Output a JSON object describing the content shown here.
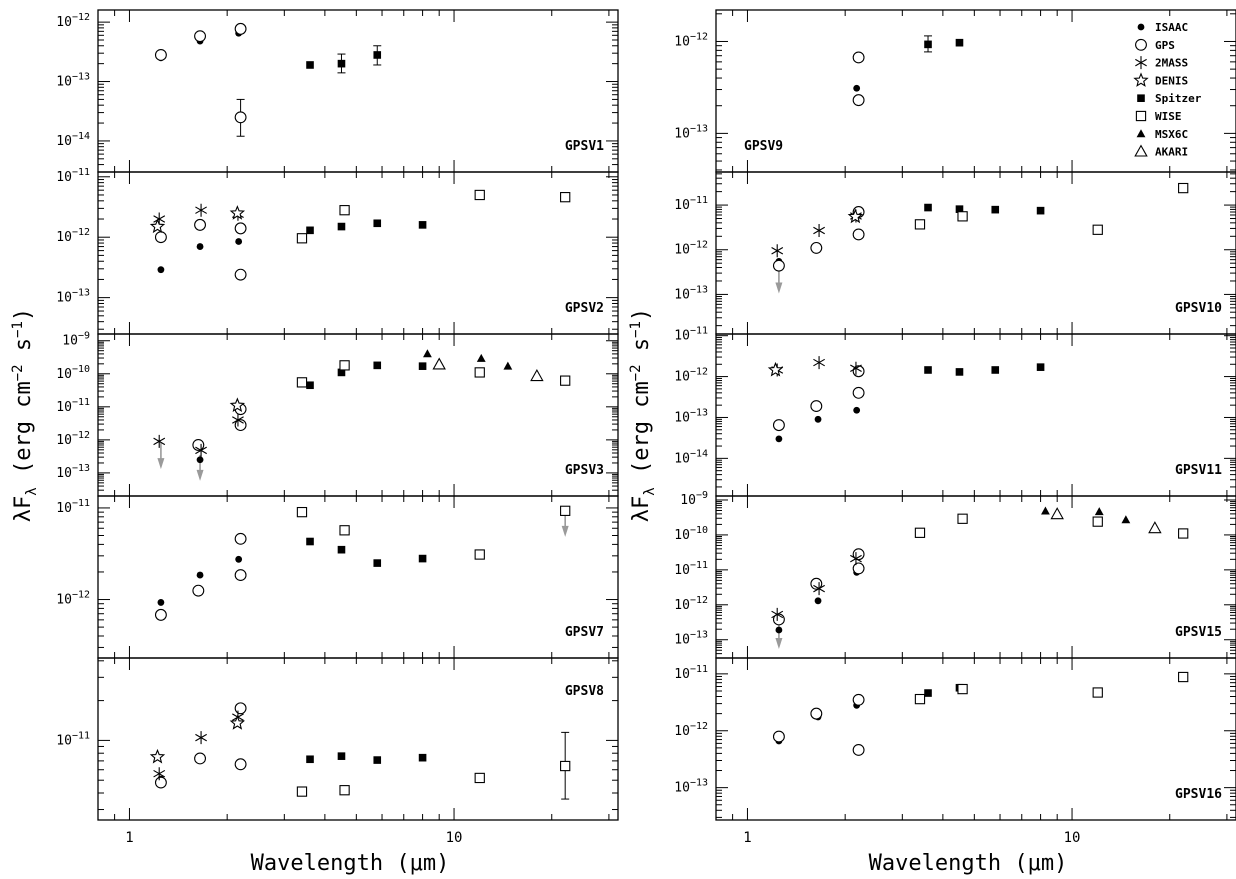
{
  "figure": {
    "xlabel": "Wavelength (μm)",
    "ylabel": "λF_λ (erg cm^-2 s^-1)",
    "x_tick_labels": [
      "1",
      "10"
    ]
  },
  "chart_data": [
    {
      "type": "scatter",
      "name": "GPSV1",
      "xscale": "log",
      "yscale": "log",
      "xlim": [
        0.8,
        32
      ],
      "ylim": [
        3e-15,
        1.6e-12
      ],
      "yticks": [
        {
          "v": 1e-14,
          "m": "10",
          "e": "−14"
        },
        {
          "v": 1e-13,
          "m": "10",
          "e": "−13"
        },
        {
          "v": 1e-12,
          "m": "10",
          "e": "−12"
        }
      ],
      "series": [
        {
          "name": "ISAAC",
          "x": [
            1.25,
            1.65,
            2.17
          ],
          "y": [
            2.5e-13,
            4.8e-13,
            6.5e-13
          ]
        },
        {
          "name": "GPS",
          "x": [
            1.25,
            1.65,
            2.2,
            2.2
          ],
          "y": [
            2.8e-13,
            5.8e-13,
            7.7e-13,
            2.5e-14
          ],
          "yerr": [
            null,
            null,
            null,
            [
              1.2e-14,
              5e-14
            ]
          ]
        },
        {
          "name": "Spitzer",
          "x": [
            3.6,
            4.5,
            5.8
          ],
          "y": [
            1.9e-13,
            2e-13,
            2.8e-13
          ],
          "yerr": [
            null,
            [
              1.4e-13,
              2.9e-13
            ],
            [
              1.9e-13,
              4e-13
            ]
          ]
        }
      ]
    },
    {
      "type": "scatter",
      "name": "GPSV2",
      "xscale": "log",
      "yscale": "log",
      "xlim": [
        0.8,
        32
      ],
      "ylim": [
        2.5e-14,
        1.2e-11
      ],
      "yticks": [
        {
          "v": 1e-13,
          "m": "10",
          "e": "−13"
        },
        {
          "v": 1e-12,
          "m": "10",
          "e": "−12"
        },
        {
          "v": 1e-11,
          "m": "10",
          "e": "−11"
        }
      ],
      "series": [
        {
          "name": "ISAAC",
          "x": [
            1.25,
            1.65,
            2.17
          ],
          "y": [
            2.9e-13,
            7e-13,
            8.5e-13
          ]
        },
        {
          "name": "GPS",
          "x": [
            1.25,
            1.65,
            2.2,
            2.2
          ],
          "y": [
            1e-12,
            1.6e-12,
            1.4e-12,
            2.4e-13
          ]
        },
        {
          "name": "2MASS",
          "x": [
            1.235,
            1.662,
            2.159
          ],
          "y": [
            2e-12,
            2.8e-12,
            2.4e-12
          ]
        },
        {
          "name": "DENIS",
          "x": [
            1.22,
            2.15
          ],
          "y": [
            1.5e-12,
            2.5e-12
          ]
        },
        {
          "name": "Spitzer",
          "x": [
            3.6,
            4.5,
            5.8,
            8.0
          ],
          "y": [
            1.3e-12,
            1.5e-12,
            1.7e-12,
            1.6e-12
          ]
        },
        {
          "name": "WISE",
          "x": [
            3.4,
            4.6,
            12,
            22
          ],
          "y": [
            9.6e-13,
            2.8e-12,
            5e-12,
            4.6e-12
          ]
        }
      ]
    },
    {
      "type": "scatter",
      "name": "GPSV3",
      "xscale": "log",
      "yscale": "log",
      "xlim": [
        0.8,
        32
      ],
      "ylim": [
        2e-14,
        1.6e-09
      ],
      "yticks": [
        {
          "v": 1e-13,
          "m": "10",
          "e": "−13"
        },
        {
          "v": 1e-12,
          "m": "10",
          "e": "−12"
        },
        {
          "v": 1e-11,
          "m": "10",
          "e": "−11"
        },
        {
          "v": 1e-10,
          "m": "10",
          "e": "−10"
        },
        {
          "v": 1e-09,
          "m": "10",
          "e": "−9"
        }
      ],
      "series": [
        {
          "name": "ISAAC",
          "x": [
            1.65,
            2.17
          ],
          "y": [
            2.5e-13,
            3e-12
          ]
        },
        {
          "name": "GPS",
          "x": [
            1.63,
            2.2,
            2.2
          ],
          "y": [
            7e-13,
            2.8e-12,
            8.5e-12
          ]
        },
        {
          "name": "2MASS",
          "x": [
            1.235,
            1.662,
            2.159
          ],
          "y": [
            9e-13,
            4.8e-13,
            4e-12
          ]
        },
        {
          "name": "DENIS",
          "x": [
            2.15
          ],
          "y": [
            1.1e-11
          ]
        },
        {
          "name": "Spitzer",
          "x": [
            3.6,
            4.5,
            5.8,
            8.0
          ],
          "y": [
            4.5e-11,
            1.1e-10,
            1.8e-10,
            1.7e-10
          ]
        },
        {
          "name": "WISE",
          "x": [
            3.4,
            4.6,
            12,
            22
          ],
          "y": [
            5.5e-11,
            1.8e-10,
            1.1e-10,
            6.2e-11
          ]
        },
        {
          "name": "MSX6C",
          "x": [
            8.28,
            12.13,
            14.65
          ],
          "y": [
            4e-10,
            2.9e-10,
            1.7e-10
          ]
        },
        {
          "name": "AKARI",
          "x": [
            9.0,
            18.0
          ],
          "y": [
            1.9e-10,
            8.5e-11
          ]
        }
      ],
      "upper_limits": [
        {
          "x": 1.25,
          "y": 8e-13
        },
        {
          "x": 1.65,
          "y": 3.5e-13
        }
      ]
    },
    {
      "type": "scatter",
      "name": "GPSV7",
      "xscale": "log",
      "yscale": "log",
      "xlim": [
        0.8,
        32
      ],
      "ylim": [
        2.3e-13,
        1.35e-11
      ],
      "yticks": [
        {
          "v": 1e-12,
          "m": "10",
          "e": "−12"
        },
        {
          "v": 1e-11,
          "m": "10",
          "e": "−11"
        }
      ],
      "series": [
        {
          "name": "ISAAC",
          "x": [
            1.25,
            1.65,
            2.17
          ],
          "y": [
            9.3e-13,
            1.85e-12,
            2.75e-12
          ]
        },
        {
          "name": "GPS",
          "x": [
            1.25,
            1.63,
            2.2,
            2.2
          ],
          "y": [
            6.8e-13,
            1.25e-12,
            4.6e-12,
            1.85e-12
          ]
        },
        {
          "name": "Spitzer",
          "x": [
            3.6,
            4.5,
            5.8,
            8.0
          ],
          "y": [
            4.3e-12,
            3.5e-12,
            2.5e-12,
            2.8e-12
          ]
        },
        {
          "name": "WISE",
          "x": [
            3.4,
            4.6,
            12,
            22
          ],
          "y": [
            9e-12,
            5.7e-12,
            3.1e-12,
            9.3e-12
          ]
        }
      ],
      "upper_limits": [
        {
          "x": 22,
          "y": 9.3e-12
        }
      ]
    },
    {
      "type": "scatter",
      "name": "GPSV8",
      "xscale": "log",
      "yscale": "log",
      "xlim": [
        0.8,
        32
      ],
      "ylim": [
        2.5e-12,
        4.2e-11
      ],
      "yticks": [
        {
          "v": 1e-11,
          "m": "10",
          "e": "−11"
        }
      ],
      "series": [
        {
          "name": "ISAAC",
          "x": [
            1.25,
            1.65,
            2.17
          ],
          "y": [
            5.1e-12,
            7.3e-12,
            6.6e-12
          ]
        },
        {
          "name": "GPS",
          "x": [
            1.25,
            1.65,
            2.2,
            2.2
          ],
          "y": [
            4.8e-12,
            7.3e-12,
            6.6e-12,
            1.75e-11
          ]
        },
        {
          "name": "2MASS",
          "x": [
            1.235,
            1.662,
            2.159
          ],
          "y": [
            5.6e-12,
            1.05e-11,
            1.5e-11
          ]
        },
        {
          "name": "DENIS",
          "x": [
            1.22,
            2.15
          ],
          "y": [
            7.5e-12,
            1.35e-11
          ]
        },
        {
          "name": "Spitzer",
          "x": [
            3.6,
            4.5,
            5.8,
            8.0
          ],
          "y": [
            7.2e-12,
            7.6e-12,
            7.1e-12,
            7.4e-12
          ]
        },
        {
          "name": "WISE",
          "x": [
            3.4,
            4.6,
            12,
            22
          ],
          "y": [
            4.1e-12,
            4.2e-12,
            5.2e-12,
            6.4e-12
          ],
          "yerr": [
            null,
            null,
            null,
            [
              3.6e-12,
              1.15e-11
            ]
          ]
        }
      ]
    },
    {
      "type": "scatter",
      "name": "GPSV9",
      "xscale": "log",
      "yscale": "log",
      "xlim": [
        0.8,
        32
      ],
      "ylim": [
        3.8e-14,
        2.2e-12
      ],
      "yticks": [
        {
          "v": 1e-13,
          "m": "10",
          "e": "−13"
        },
        {
          "v": 1e-12,
          "m": "10",
          "e": "−12"
        }
      ],
      "series": [
        {
          "name": "ISAAC",
          "x": [
            2.17
          ],
          "y": [
            3.1e-13
          ]
        },
        {
          "name": "GPS",
          "x": [
            2.2,
            2.2
          ],
          "y": [
            6.7e-13,
            2.3e-13
          ]
        },
        {
          "name": "Spitzer",
          "x": [
            3.6,
            4.5
          ],
          "y": [
            9.3e-13,
            9.7e-13
          ],
          "yerr": [
            [
              7.7e-13,
              1.15e-12
            ],
            null
          ]
        }
      ]
    },
    {
      "type": "scatter",
      "name": "GPSV10",
      "xscale": "log",
      "yscale": "log",
      "xlim": [
        0.8,
        32
      ],
      "ylim": [
        1.3e-14,
        5.5e-11
      ],
      "yticks": [
        {
          "v": 1e-13,
          "m": "10",
          "e": "−13"
        },
        {
          "v": 1e-12,
          "m": "10",
          "e": "−12"
        },
        {
          "v": 1e-11,
          "m": "10",
          "e": "−11"
        }
      ],
      "series": [
        {
          "name": "ISAAC",
          "x": [
            1.25,
            1.65,
            2.17
          ],
          "y": [
            5.5e-13,
            1.2e-12,
            2.2e-12
          ]
        },
        {
          "name": "GPS",
          "x": [
            1.25,
            1.63,
            2.2,
            2.2
          ],
          "y": [
            4.4e-13,
            1.1e-12,
            2.2e-12,
            7e-12
          ]
        },
        {
          "name": "2MASS",
          "x": [
            1.235,
            1.662,
            2.159
          ],
          "y": [
            9.5e-13,
            2.7e-12,
            5.7e-12
          ]
        },
        {
          "name": "DENIS",
          "x": [
            2.15
          ],
          "y": [
            5.5e-12
          ]
        },
        {
          "name": "Spitzer",
          "x": [
            3.6,
            4.5,
            5.8,
            8.0
          ],
          "y": [
            8.8e-12,
            8.1e-12,
            7.9e-12,
            7.5e-12
          ]
        },
        {
          "name": "WISE",
          "x": [
            3.4,
            4.6,
            12,
            22
          ],
          "y": [
            3.7e-12,
            5.6e-12,
            2.8e-12,
            2.4e-11
          ]
        }
      ],
      "upper_limits": [
        {
          "x": 1.25,
          "y": 4e-13
        }
      ]
    },
    {
      "type": "scatter",
      "name": "GPSV11",
      "xscale": "log",
      "yscale": "log",
      "xlim": [
        0.8,
        32
      ],
      "ylim": [
        1.2e-15,
        1.1e-11
      ],
      "yticks": [
        {
          "v": 1e-14,
          "m": "10",
          "e": "−14"
        },
        {
          "v": 1e-13,
          "m": "10",
          "e": "−13"
        },
        {
          "v": 1e-12,
          "m": "10",
          "e": "−12"
        },
        {
          "v": 1e-11,
          "m": "10",
          "e": "−11"
        }
      ],
      "series": [
        {
          "name": "ISAAC",
          "x": [
            1.25,
            1.65,
            2.17
          ],
          "y": [
            3e-14,
            9e-14,
            1.5e-13
          ]
        },
        {
          "name": "GPS",
          "x": [
            1.25,
            1.63,
            2.2,
            2.2
          ],
          "y": [
            6.5e-14,
            1.9e-13,
            4e-13,
            1.35e-12
          ]
        },
        {
          "name": "2MASS",
          "x": [
            1.235,
            1.662,
            2.159
          ],
          "y": [
            1.45e-12,
            2.2e-12,
            1.6e-12
          ]
        },
        {
          "name": "DENIS",
          "x": [
            1.22
          ],
          "y": [
            1.45e-12
          ]
        },
        {
          "name": "Spitzer",
          "x": [
            3.6,
            4.5,
            5.8,
            8.0
          ],
          "y": [
            1.45e-12,
            1.3e-12,
            1.45e-12,
            1.7e-12
          ]
        }
      ]
    },
    {
      "type": "scatter",
      "name": "GPSV15",
      "xscale": "log",
      "yscale": "log",
      "xlim": [
        0.8,
        32
      ],
      "ylim": [
        3e-14,
        1.3e-09
      ],
      "yticks": [
        {
          "v": 1e-13,
          "m": "10",
          "e": "−13"
        },
        {
          "v": 1e-12,
          "m": "10",
          "e": "−12"
        },
        {
          "v": 1e-11,
          "m": "10",
          "e": "−11"
        },
        {
          "v": 1e-10,
          "m": "10",
          "e": "−10"
        },
        {
          "v": 1e-09,
          "m": "10",
          "e": "−9"
        }
      ],
      "series": [
        {
          "name": "ISAAC",
          "x": [
            1.25,
            1.65,
            2.17
          ],
          "y": [
            1.9e-13,
            1.3e-12,
            8.5e-12
          ]
        },
        {
          "name": "GPS",
          "x": [
            1.25,
            1.63,
            2.2,
            2.2
          ],
          "y": [
            3.8e-13,
            4e-12,
            1.1e-11,
            2.8e-11
          ]
        },
        {
          "name": "2MASS",
          "x": [
            1.235,
            1.662,
            2.159
          ],
          "y": [
            5.3e-13,
            2.9e-12,
            2.1e-11
          ]
        },
        {
          "name": "WISE",
          "x": [
            3.4,
            4.6,
            12,
            22
          ],
          "y": [
            1.15e-10,
            2.9e-10,
            2.4e-10,
            1.1e-10
          ]
        },
        {
          "name": "MSX6C",
          "x": [
            8.28,
            12.13,
            14.65
          ],
          "y": [
            4.8e-10,
            4.6e-10,
            2.7e-10
          ]
        },
        {
          "name": "AKARI",
          "x": [
            9.0,
            18.0
          ],
          "y": [
            3.9e-10,
            1.55e-10
          ]
        }
      ],
      "upper_limits": [
        {
          "x": 1.25,
          "y": 3e-13
        }
      ]
    },
    {
      "type": "scatter",
      "name": "GPSV16",
      "xscale": "log",
      "yscale": "log",
      "xlim": [
        0.8,
        32
      ],
      "ylim": [
        2.7e-14,
        1.9e-11
      ],
      "yticks": [
        {
          "v": 1e-13,
          "m": "10",
          "e": "−13"
        },
        {
          "v": 1e-12,
          "m": "10",
          "e": "−12"
        },
        {
          "v": 1e-11,
          "m": "10",
          "e": "−11"
        }
      ],
      "series": [
        {
          "name": "ISAAC",
          "x": [
            1.25,
            1.65,
            2.17
          ],
          "y": [
            6.6e-13,
            1.75e-12,
            2.8e-12
          ]
        },
        {
          "name": "GPS",
          "x": [
            1.25,
            1.63,
            2.2,
            2.2
          ],
          "y": [
            7.9e-13,
            2e-12,
            3.5e-12,
            4.6e-13
          ]
        },
        {
          "name": "Spitzer",
          "x": [
            3.6,
            4.5
          ],
          "y": [
            4.6e-12,
            5.7e-12
          ]
        },
        {
          "name": "WISE",
          "x": [
            3.4,
            4.6,
            12,
            22
          ],
          "y": [
            3.6e-12,
            5.4e-12,
            4.7e-12,
            8.8e-12
          ]
        }
      ]
    }
  ],
  "legend": {
    "placement": "top-right of GPSV9 panel",
    "entries": [
      {
        "label": "ISAAC",
        "marker": "filled-circle"
      },
      {
        "label": "GPS",
        "marker": "open-circle"
      },
      {
        "label": "2MASS",
        "marker": "star-asterisk"
      },
      {
        "label": "DENIS",
        "marker": "open-star"
      },
      {
        "label": "Spitzer",
        "marker": "filled-square"
      },
      {
        "label": "WISE",
        "marker": "open-square"
      },
      {
        "label": "MSX6C",
        "marker": "filled-triangle"
      },
      {
        "label": "AKARI",
        "marker": "open-triangle"
      }
    ]
  },
  "colors": {
    "markers": "#000000",
    "upper_limit_arrows": "#9a9a9a",
    "background": "#ffffff"
  }
}
